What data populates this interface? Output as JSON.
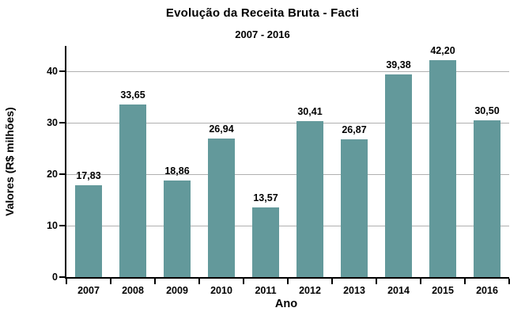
{
  "chart_data": {
    "type": "bar",
    "title": "Evolução da Receita Bruta - Facti",
    "subtitle": "2007 - 2016",
    "xlabel": "Ano",
    "ylabel": "Valores (R$ milhões)",
    "categories": [
      "2007",
      "2008",
      "2009",
      "2010",
      "2011",
      "2012",
      "2013",
      "2014",
      "2015",
      "2016"
    ],
    "values": [
      17.83,
      33.65,
      18.86,
      26.94,
      13.57,
      30.41,
      26.87,
      39.38,
      42.2,
      30.5
    ],
    "value_labels": [
      "17,83",
      "33,65",
      "18,86",
      "26,94",
      "13,57",
      "30,41",
      "26,87",
      "39,38",
      "42,20",
      "30,50"
    ],
    "yticks": [
      0,
      10,
      20,
      30,
      40
    ],
    "ylim": [
      0,
      45
    ],
    "grid": "horizontal-only",
    "legend": "none",
    "colors": {
      "bar": "#63999B",
      "grid": "#B0B0B0",
      "axis": "#000000",
      "text": "#000000",
      "background": "#FFFFFF"
    }
  }
}
